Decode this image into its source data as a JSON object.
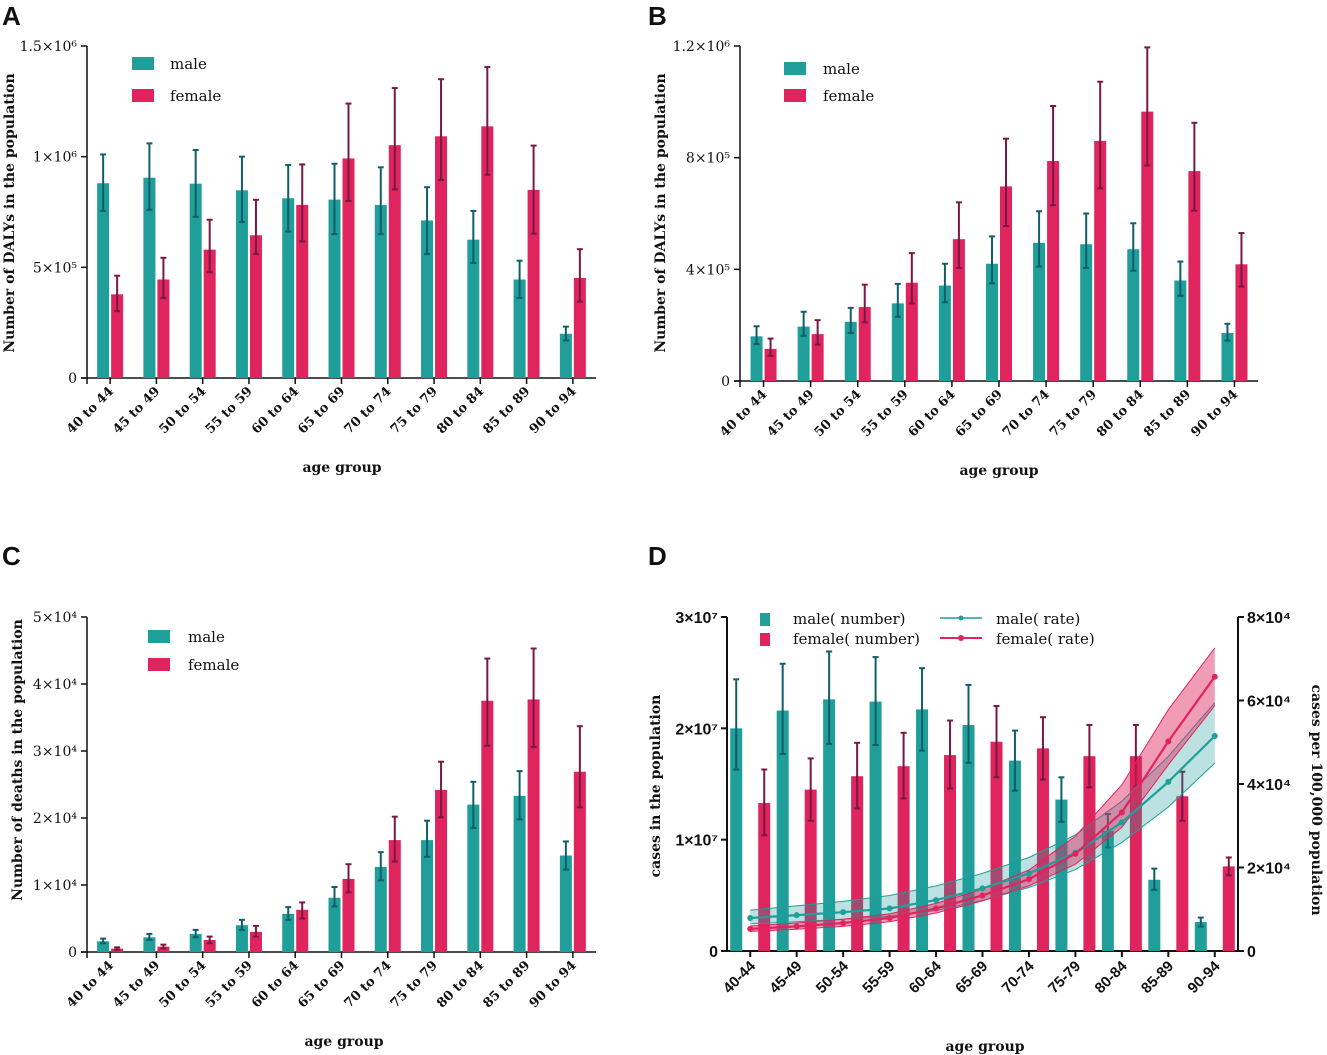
{
  "colors": {
    "male": "#1f9e9a",
    "female": "#e0245e",
    "male_err": "#105e6a",
    "female_err": "#7a1845"
  },
  "chart_data": [
    {
      "panel": "A",
      "type": "bar",
      "xlabel": "age group",
      "ylabel": "Number of DALYs in the population",
      "categories": [
        "40 to 44",
        "45 to 49",
        "50 to 54",
        "55 to 59",
        "60 to 64",
        "65 to 69",
        "70 to 74",
        "75 to 79",
        "80 to 84",
        "85 to 89",
        "90 to 94"
      ],
      "ylim": [
        0,
        1500000
      ],
      "yticks": [
        {
          "value": 0,
          "label": "0"
        },
        {
          "value": 500000,
          "label": "5×10⁵"
        },
        {
          "value": 1000000,
          "label": "1×10⁶"
        },
        {
          "value": 1500000,
          "label": "1.5×10⁶"
        }
      ],
      "legend": [
        "male",
        "female"
      ],
      "series": [
        {
          "name": "male",
          "values": [
            880000,
            905000,
            878000,
            848000,
            812000,
            806000,
            782000,
            712000,
            625000,
            445000,
            200000
          ],
          "upper": [
            1010000,
            1060000,
            1030000,
            1000000,
            962000,
            968000,
            952000,
            862000,
            755000,
            530000,
            232000
          ],
          "lower": [
            755000,
            760000,
            728000,
            705000,
            662000,
            650000,
            650000,
            560000,
            520000,
            362000,
            170000
          ]
        },
        {
          "name": "female",
          "values": [
            378000,
            445000,
            580000,
            645000,
            782000,
            992000,
            1052000,
            1092000,
            1137000,
            850000,
            452000
          ],
          "upper": [
            462000,
            543000,
            715000,
            805000,
            965000,
            1240000,
            1310000,
            1350000,
            1405000,
            1050000,
            582000
          ],
          "lower": [
            302000,
            362000,
            478000,
            560000,
            617000,
            800000,
            852000,
            895000,
            918000,
            652000,
            345000
          ]
        }
      ]
    },
    {
      "panel": "B",
      "type": "bar",
      "xlabel": "age group",
      "ylabel": "Number of DALYs in the population",
      "categories": [
        "40 to 44",
        "45 to 49",
        "50 to 54",
        "55 to 59",
        "60 to 64",
        "65 to 69",
        "70 to 74",
        "75 to 79",
        "80 to 84",
        "85 to 89",
        "90 to 94"
      ],
      "ylim": [
        0,
        1200000
      ],
      "yticks": [
        {
          "value": 0,
          "label": "0"
        },
        {
          "value": 400000,
          "label": "4×10⁵"
        },
        {
          "value": 800000,
          "label": "8×10⁵"
        },
        {
          "value": 1200000,
          "label": "1.2×10⁶"
        }
      ],
      "legend": [
        "male",
        "female"
      ],
      "series": [
        {
          "name": "male",
          "values": [
            160000,
            195000,
            212000,
            278000,
            342000,
            420000,
            495000,
            490000,
            472000,
            360000,
            172000
          ],
          "upper": [
            196000,
            248000,
            262000,
            348000,
            420000,
            518000,
            608000,
            600000,
            565000,
            428000,
            205000
          ],
          "lower": [
            132000,
            162000,
            172000,
            230000,
            282000,
            350000,
            410000,
            405000,
            395000,
            305000,
            145000
          ]
        },
        {
          "name": "female",
          "values": [
            115000,
            168000,
            265000,
            352000,
            508000,
            697000,
            788000,
            860000,
            965000,
            752000,
            418000
          ],
          "upper": [
            152000,
            218000,
            345000,
            458000,
            640000,
            868000,
            985000,
            1072000,
            1195000,
            925000,
            530000
          ],
          "lower": [
            90000,
            130000,
            210000,
            278000,
            405000,
            555000,
            630000,
            690000,
            772000,
            610000,
            338000
          ]
        }
      ]
    },
    {
      "panel": "C",
      "type": "bar",
      "xlabel": "age group",
      "ylabel": "Number of deaths in the population",
      "categories": [
        "40 to 44",
        "45 to 49",
        "50 to 54",
        "55 to 59",
        "60 to 64",
        "65 to 69",
        "70 to 74",
        "75 to 79",
        "80 to 84",
        "85 to 89",
        "90 to 94"
      ],
      "ylim": [
        0,
        50000
      ],
      "yticks": [
        {
          "value": 0,
          "label": "0"
        },
        {
          "value": 10000,
          "label": "1×10⁴"
        },
        {
          "value": 20000,
          "label": "2×10⁴"
        },
        {
          "value": 30000,
          "label": "3×10⁴"
        },
        {
          "value": 40000,
          "label": "4×10⁴"
        },
        {
          "value": 50000,
          "label": "5×10⁴"
        }
      ],
      "legend": [
        "male",
        "female"
      ],
      "series": [
        {
          "name": "male",
          "values": [
            1600,
            2200,
            2700,
            4000,
            5700,
            8100,
            12700,
            16700,
            22000,
            23300,
            14400
          ],
          "upper": [
            2000,
            2700,
            3300,
            4800,
            6700,
            9700,
            14900,
            19600,
            25400,
            27000,
            16500
          ],
          "lower": [
            1300,
            1800,
            2200,
            3300,
            4800,
            6800,
            10700,
            14200,
            18500,
            19800,
            12300
          ]
        },
        {
          "name": "female",
          "values": [
            500,
            800,
            1800,
            3000,
            6300,
            10900,
            16700,
            24200,
            37500,
            37700,
            26900
          ],
          "upper": [
            700,
            1100,
            2300,
            3900,
            7400,
            13100,
            20200,
            28400,
            43800,
            45300,
            33700
          ],
          "lower": [
            350,
            550,
            1300,
            2300,
            5000,
            8900,
            13500,
            20100,
            30800,
            30600,
            21600
          ]
        }
      ]
    },
    {
      "panel": "D",
      "type": "bar+line",
      "xlabel": "age group",
      "ylabel": "cases in the population",
      "y2label": "cases per 100,000 population",
      "categories": [
        "40-44",
        "45-49",
        "50-54",
        "55-59",
        "60-64",
        "65-69",
        "70-74",
        "75-79",
        "80-84",
        "85-89",
        "90-94"
      ],
      "ylim": [
        0,
        30000000
      ],
      "y2lim": [
        0,
        80000
      ],
      "yticks": [
        {
          "value": 0,
          "label": "0"
        },
        {
          "value": 10000000,
          "label": "1×10⁷"
        },
        {
          "value": 20000000,
          "label": "2×10⁷"
        },
        {
          "value": 30000000,
          "label": "3×10⁷"
        }
      ],
      "y2ticks": [
        {
          "value": 0,
          "label": "0"
        },
        {
          "value": 20000,
          "label": "2×10⁴"
        },
        {
          "value": 40000,
          "label": "4×10⁴"
        },
        {
          "value": 60000,
          "label": "6×10⁴"
        },
        {
          "value": 80000,
          "label": "8×10⁴"
        }
      ],
      "legend": [
        "male( number)",
        "female( number)",
        "male( rate)",
        "female( rate)"
      ],
      "series": [
        {
          "name": "male( number)",
          "values": [
            20000000,
            21600000,
            22600000,
            22400000,
            21700000,
            20300000,
            17100000,
            13600000,
            10800000,
            6400000,
            2600000
          ],
          "upper": [
            24400000,
            25800000,
            26900000,
            26400000,
            25400000,
            23900000,
            19800000,
            15600000,
            12300000,
            7400000,
            3000000
          ],
          "lower": [
            16300000,
            17700000,
            18600000,
            18500000,
            18000000,
            16900000,
            14400000,
            11600000,
            9300000,
            5500000,
            2200000
          ]
        },
        {
          "name": "female( number)",
          "values": [
            13300000,
            14500000,
            15700000,
            16600000,
            17600000,
            18800000,
            18200000,
            17500000,
            17500000,
            13900000,
            7600000
          ],
          "upper": [
            16300000,
            17300000,
            18700000,
            19600000,
            20700000,
            22000000,
            21000000,
            20300000,
            20300000,
            16100000,
            8400000
          ],
          "lower": [
            10400000,
            11700000,
            12800000,
            13700000,
            14600000,
            15600000,
            15400000,
            14700000,
            14800000,
            11700000,
            6800000
          ]
        }
      ],
      "rate_series": [
        {
          "name": "male( rate)",
          "values": [
            7900,
            8600,
            9300,
            10200,
            12200,
            15000,
            18600,
            23500,
            30800,
            40500,
            51500
          ],
          "upper": [
            9800,
            10800,
            11900,
            13300,
            15600,
            18600,
            22400,
            27800,
            35900,
            46600,
            59500
          ],
          "lower": [
            6500,
            7000,
            7600,
            8300,
            9700,
            12100,
            15200,
            19500,
            26000,
            34500,
            45000
          ]
        },
        {
          "name": "female( rate)",
          "values": [
            5300,
            5900,
            6700,
            7900,
            10200,
            13300,
            17200,
            23300,
            33200,
            50200,
            65700
          ],
          "upper": [
            6000,
            6700,
            7600,
            8900,
            11400,
            14800,
            19400,
            27500,
            39800,
            57800,
            72600
          ],
          "lower": [
            4700,
            5200,
            5900,
            7000,
            9100,
            12000,
            15600,
            20800,
            29600,
            44600,
            58800
          ]
        }
      ]
    }
  ]
}
